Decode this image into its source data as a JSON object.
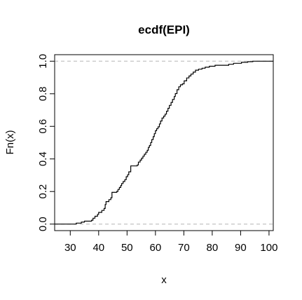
{
  "chart_data": {
    "type": "line",
    "title": "ecdf(EPI)",
    "xlabel": "x",
    "ylabel": "Fn(x)",
    "xlim": [
      24.5,
      101.5
    ],
    "ylim": [
      -0.04,
      1.04
    ],
    "xticks": [
      "30",
      "40",
      "50",
      "60",
      "70",
      "80",
      "90",
      "100"
    ],
    "yticks": [
      "0.0",
      "0.2",
      "0.4",
      "0.6",
      "0.8",
      "1.0"
    ],
    "reference_lines": [
      0,
      1
    ],
    "grid": false,
    "series": [
      {
        "step": true,
        "x": [
          23.5,
          32.1,
          33.9,
          35.0,
          37.5,
          38.0,
          38.7,
          39.6,
          40.0,
          41.1,
          41.9,
          42.3,
          42.6,
          43.6,
          44.3,
          44.7,
          46.4,
          46.8,
          47.3,
          47.8,
          48.1,
          48.6,
          49.2,
          49.7,
          50.2,
          50.6,
          51.3,
          53.6,
          54.0,
          54.6,
          55.1,
          55.6,
          56.1,
          56.6,
          57.1,
          57.5,
          57.9,
          58.3,
          58.7,
          59.2,
          59.6,
          60.0,
          60.4,
          60.9,
          61.4,
          61.8,
          62.3,
          62.9,
          63.4,
          63.9,
          64.4,
          64.9,
          65.5,
          66.0,
          66.6,
          67.0,
          67.6,
          68.2,
          68.8,
          69.5,
          70.1,
          71.0,
          71.8,
          72.5,
          73.3,
          74.1,
          75.2,
          76.4,
          77.5,
          79.0,
          81.0,
          85.8,
          87.5,
          90.3,
          92.5,
          94.3,
          101.5
        ],
        "y": [
          0.0,
          0.006,
          0.012,
          0.018,
          0.024,
          0.036,
          0.048,
          0.06,
          0.072,
          0.084,
          0.096,
          0.12,
          0.138,
          0.15,
          0.162,
          0.195,
          0.201,
          0.213,
          0.225,
          0.237,
          0.249,
          0.261,
          0.273,
          0.291,
          0.303,
          0.321,
          0.357,
          0.363,
          0.381,
          0.393,
          0.405,
          0.417,
          0.429,
          0.441,
          0.453,
          0.471,
          0.483,
          0.501,
          0.519,
          0.537,
          0.555,
          0.573,
          0.585,
          0.597,
          0.615,
          0.633,
          0.651,
          0.663,
          0.675,
          0.693,
          0.711,
          0.729,
          0.747,
          0.765,
          0.783,
          0.801,
          0.825,
          0.843,
          0.855,
          0.861,
          0.879,
          0.897,
          0.909,
          0.921,
          0.933,
          0.945,
          0.951,
          0.957,
          0.963,
          0.969,
          0.975,
          0.981,
          0.987,
          0.993,
          0.997,
          1.0,
          1.0
        ]
      }
    ]
  }
}
